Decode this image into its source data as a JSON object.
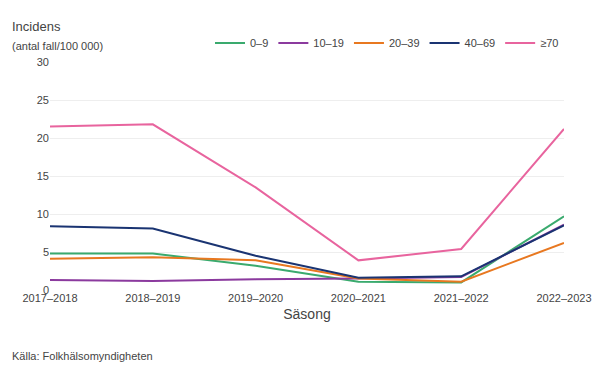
{
  "chart_data": {
    "type": "line",
    "xlabel": "Säsong",
    "ylabel": "Incidens",
    "annotations": [
      "(antal fall/100 000)",
      "Källa: Folkhälsomyndigheten"
    ],
    "categories": [
      "2017–2018",
      "2018–2019",
      "2019–2020",
      "2020–2021",
      "2021–2022",
      "2022–2023"
    ],
    "series": [
      {
        "name": "0–9",
        "color": "#3aaa6e",
        "values": [
          4.8,
          4.8,
          3.2,
          1.1,
          1.0,
          9.7
        ]
      },
      {
        "name": "10–19",
        "color": "#8b3a9e",
        "values": [
          1.3,
          1.2,
          1.4,
          1.5,
          1.7,
          8.6
        ]
      },
      {
        "name": "20–39",
        "color": "#e87820",
        "values": [
          4.1,
          4.3,
          3.9,
          1.5,
          1.1,
          6.2
        ]
      },
      {
        "name": "40–69",
        "color": "#1a3472",
        "values": [
          8.4,
          8.1,
          4.5,
          1.6,
          1.8,
          8.5
        ]
      },
      {
        "name": "≥70",
        "color": "#e8649e",
        "values": [
          21.5,
          21.8,
          13.5,
          3.9,
          5.4,
          21.2
        ]
      }
    ],
    "ylim": [
      0,
      30
    ],
    "yticks": [
      0,
      5,
      10,
      15,
      20,
      25,
      30
    ],
    "grid": true,
    "legend": "top"
  }
}
